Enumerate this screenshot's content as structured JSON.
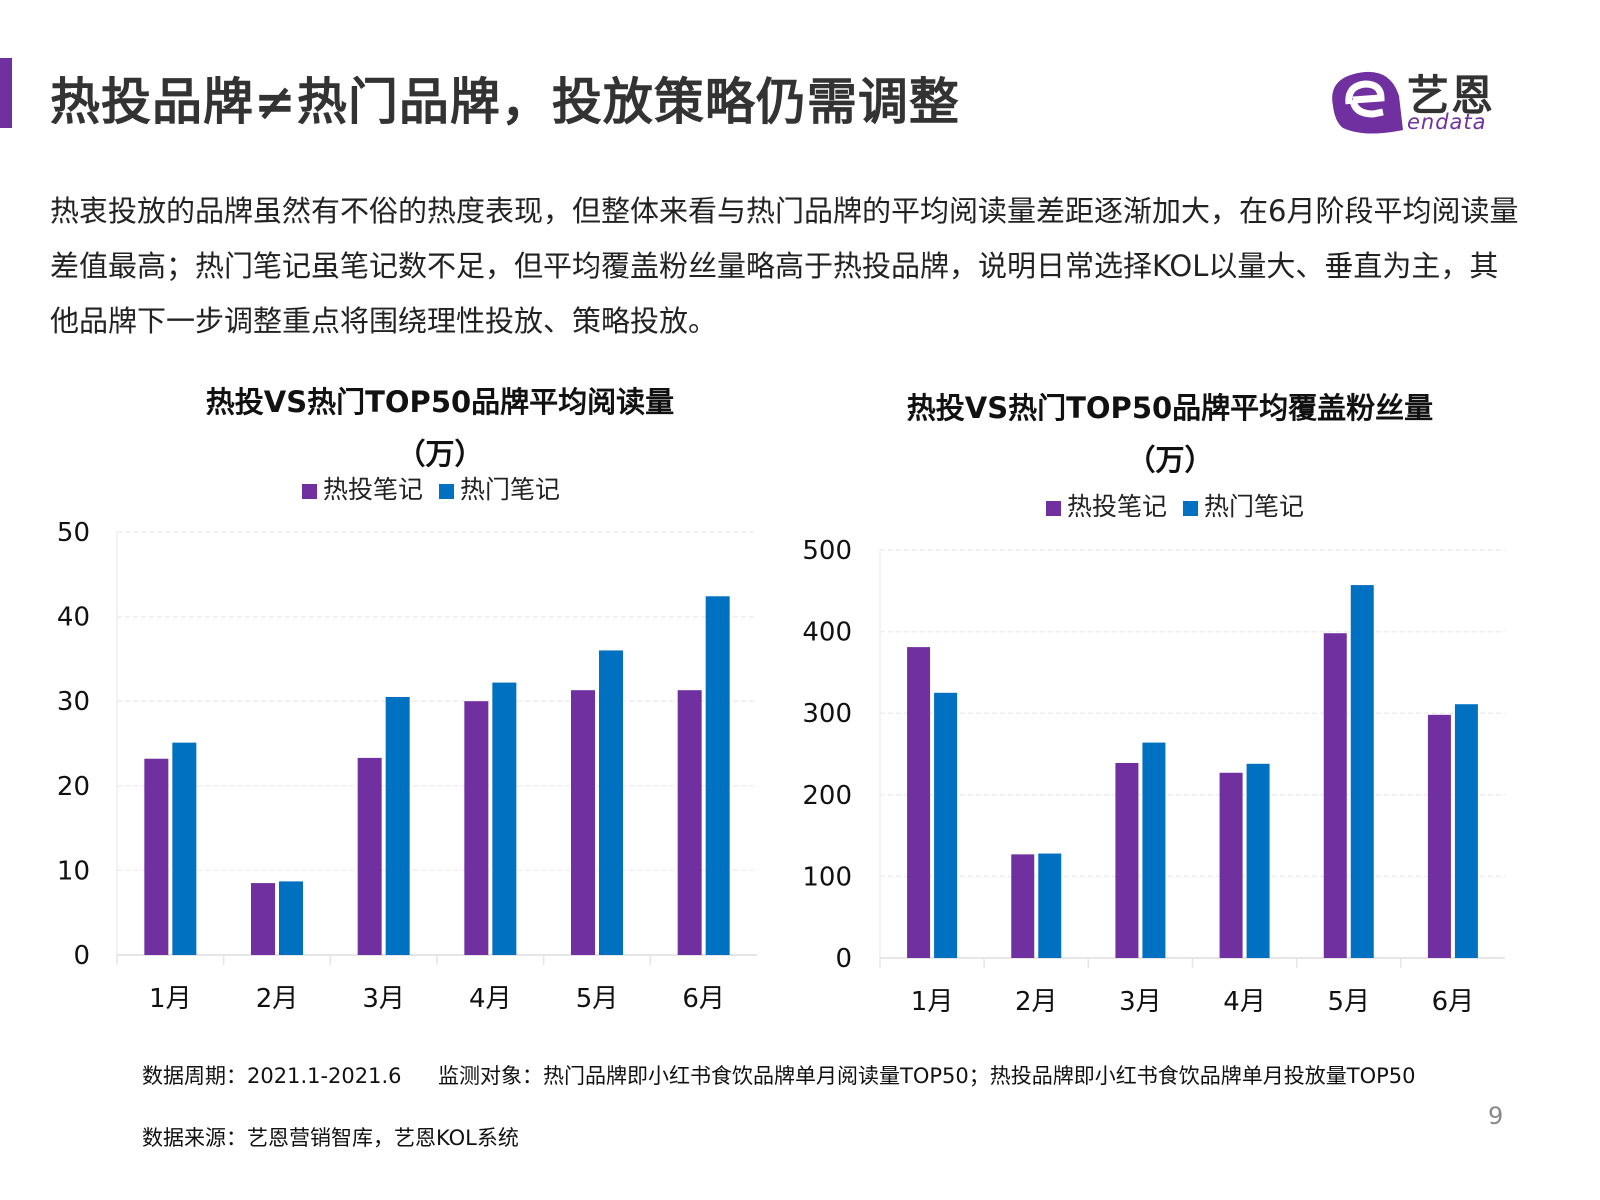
{
  "header": {
    "title": "热投品牌≠热门品牌，投放策略仍需调整",
    "logo": {
      "cn": "艺恩",
      "en": "endata"
    }
  },
  "body_text": "热衷投放的品牌虽然有不俗的热度表现，但整体来看与热门品牌的平均阅读量差距逐渐加大，在6月阶段平均阅读量差值最高；热门笔记虽笔记数不足，但平均覆盖粉丝量略高于热投品牌，说明日常选择KOL以量大、垂直为主，其他品牌下一步调整重点将围绕理性投放、策略投放。",
  "colors": {
    "accent": "#7030a0",
    "series1": "#7030a0",
    "series2": "#0070c0"
  },
  "chart_data": [
    {
      "type": "bar",
      "title": "热投VS热门TOP50品牌平均阅读量",
      "subtitle": "（万）",
      "categories": [
        "1月",
        "2月",
        "3月",
        "4月",
        "5月",
        "6月"
      ],
      "yticks": [
        "0",
        "10",
        "20",
        "30",
        "40",
        "50"
      ],
      "ylim": [
        0,
        50
      ],
      "grid": true,
      "legend": "top",
      "series": [
        {
          "name": "热投笔记",
          "values": [
            23.2,
            8.5,
            23.3,
            30.0,
            31.3,
            31.3
          ]
        },
        {
          "name": "热门笔记",
          "values": [
            25.1,
            8.7,
            30.5,
            32.2,
            36.0,
            42.4
          ]
        }
      ]
    },
    {
      "type": "bar",
      "title": "热投VS热门TOP50品牌平均覆盖粉丝量",
      "subtitle": "（万）",
      "categories": [
        "1月",
        "2月",
        "3月",
        "4月",
        "5月",
        "6月"
      ],
      "yticks": [
        "0",
        "100",
        "200",
        "300",
        "400",
        "500"
      ],
      "ylim": [
        0,
        500
      ],
      "grid": true,
      "legend": "top",
      "series": [
        {
          "name": "热投笔记",
          "values": [
            381,
            127,
            239,
            227,
            398,
            298
          ]
        },
        {
          "name": "热门笔记",
          "values": [
            325,
            128,
            264,
            238,
            457,
            311
          ]
        }
      ]
    }
  ],
  "footer": {
    "period": "数据周期：2021.1-2021.6",
    "target": "监测对象：热门品牌即小红书食饮品牌单月阅读量TOP50；热投品牌即小红书食饮品牌单月投放量TOP50",
    "source": "数据来源：艺恩营销智库，艺恩KOL系统",
    "page": "9"
  }
}
